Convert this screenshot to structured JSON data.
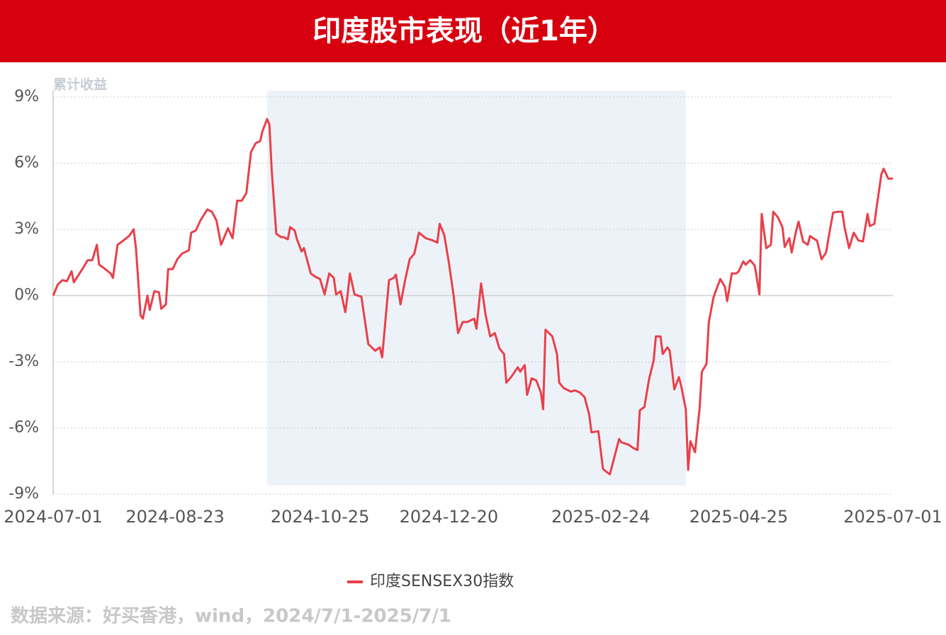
{
  "chart_data": {
    "type": "line",
    "title": "印度股市表现（近1年）",
    "y_label": "累计收益",
    "x": [
      "2024-07-01",
      "2024-07-03",
      "2024-07-05",
      "2024-07-07",
      "2024-07-09",
      "2024-07-10",
      "2024-07-14",
      "2024-07-16",
      "2024-07-18",
      "2024-07-20",
      "2024-07-21",
      "2024-07-23",
      "2024-07-26",
      "2024-07-27",
      "2024-07-29",
      "2024-07-31",
      "2024-08-03",
      "2024-08-05",
      "2024-08-06",
      "2024-08-08",
      "2024-08-09",
      "2024-08-11",
      "2024-08-12",
      "2024-08-14",
      "2024-08-16",
      "2024-08-17",
      "2024-08-19",
      "2024-08-20",
      "2024-08-22",
      "2024-08-24",
      "2024-08-26",
      "2024-08-29",
      "2024-08-30",
      "2024-09-01",
      "2024-09-03",
      "2024-09-06",
      "2024-09-08",
      "2024-09-10",
      "2024-09-12",
      "2024-09-15",
      "2024-09-17",
      "2024-09-19",
      "2024-09-21",
      "2024-09-23",
      "2024-09-25",
      "2024-09-27",
      "2024-09-29",
      "2024-09-30",
      "2024-10-02",
      "2024-10-03",
      "2024-10-04",
      "2024-10-06",
      "2024-10-08",
      "2024-10-09",
      "2024-10-11",
      "2024-10-12",
      "2024-10-14",
      "2024-10-15",
      "2024-10-17",
      "2024-10-18",
      "2024-10-21",
      "2024-10-23",
      "2024-10-25",
      "2024-10-27",
      "2024-10-29",
      "2024-10-31",
      "2024-11-01",
      "2024-11-03",
      "2024-11-05",
      "2024-11-06",
      "2024-11-07",
      "2024-11-09",
      "2024-11-12",
      "2024-11-15",
      "2024-11-18",
      "2024-11-20",
      "2024-11-21",
      "2024-11-24",
      "2024-11-26",
      "2024-11-27",
      "2024-11-29",
      "2024-12-01",
      "2024-12-03",
      "2024-12-05",
      "2024-12-07",
      "2024-12-10",
      "2024-12-13",
      "2024-12-15",
      "2024-12-16",
      "2024-12-18",
      "2024-12-20",
      "2024-12-22",
      "2024-12-24",
      "2024-12-26",
      "2024-12-28",
      "2024-12-31",
      "2025-01-01",
      "2025-01-03",
      "2025-01-05",
      "2025-01-07",
      "2025-01-09",
      "2025-01-11",
      "2025-01-13",
      "2025-01-14",
      "2025-01-16",
      "2025-01-19",
      "2025-01-20",
      "2025-01-22",
      "2025-01-23",
      "2025-01-25",
      "2025-01-27",
      "2025-01-29",
      "2025-01-30",
      "2025-01-31",
      "2025-02-03",
      "2025-02-05",
      "2025-02-06",
      "2025-02-08",
      "2025-02-11",
      "2025-02-13",
      "2025-02-15",
      "2025-02-17",
      "2025-02-19",
      "2025-02-20",
      "2025-02-23",
      "2025-02-25",
      "2025-02-26",
      "2025-02-28",
      "2025-03-02",
      "2025-03-04",
      "2025-03-05",
      "2025-03-08",
      "2025-03-10",
      "2025-03-12",
      "2025-03-13",
      "2025-03-15",
      "2025-03-17",
      "2025-03-19",
      "2025-03-20",
      "2025-03-22",
      "2025-03-23",
      "2025-03-25",
      "2025-03-26",
      "2025-03-28",
      "2025-03-30",
      "2025-03-31",
      "2025-04-02",
      "2025-04-03",
      "2025-04-04",
      "2025-04-06",
      "2025-04-08",
      "2025-04-09",
      "2025-04-11",
      "2025-04-12",
      "2025-04-14",
      "2025-04-15",
      "2025-04-17",
      "2025-04-19",
      "2025-04-20",
      "2025-04-22",
      "2025-04-24",
      "2025-04-25",
      "2025-04-27",
      "2025-04-28",
      "2025-04-30",
      "2025-05-02",
      "2025-05-04",
      "2025-05-05",
      "2025-05-07",
      "2025-05-09",
      "2025-05-10",
      "2025-05-12",
      "2025-05-14",
      "2025-05-15",
      "2025-05-17",
      "2025-05-18",
      "2025-05-20",
      "2025-05-21",
      "2025-05-23",
      "2025-05-25",
      "2025-05-26",
      "2025-05-28",
      "2025-05-29",
      "2025-05-31",
      "2025-06-02",
      "2025-06-03",
      "2025-06-05",
      "2025-06-07",
      "2025-06-09",
      "2025-06-10",
      "2025-06-12",
      "2025-06-14",
      "2025-06-16",
      "2025-06-18",
      "2025-06-20",
      "2025-06-21",
      "2025-06-23",
      "2025-06-24",
      "2025-06-26",
      "2025-06-27",
      "2025-06-29",
      "2025-07-01"
    ],
    "series": [
      {
        "name": "印度SENSEX30指数",
        "color": "#e8404a",
        "values": [
          0,
          0.5,
          0.7,
          0.65,
          1.1,
          0.6,
          1.25,
          1.6,
          1.6,
          2.3,
          1.4,
          1.25,
          1.0,
          0.8,
          2.3,
          2.45,
          2.7,
          3.0,
          2.15,
          -0.9,
          -1.05,
          0,
          -0.65,
          0.2,
          0.15,
          -0.6,
          -0.4,
          1.2,
          1.2,
          1.65,
          1.9,
          2.05,
          2.85,
          2.95,
          3.4,
          3.9,
          3.8,
          3.4,
          2.3,
          3.05,
          2.6,
          4.3,
          4.3,
          4.65,
          6.5,
          6.9,
          7.0,
          7.45,
          8.0,
          7.75,
          5.7,
          2.8,
          2.65,
          2.65,
          2.55,
          3.1,
          2.95,
          2.55,
          2.0,
          2.15,
          1.0,
          0.85,
          0.75,
          0.05,
          1.0,
          0.8,
          0.05,
          0.2,
          -0.75,
          0.05,
          1.0,
          0.05,
          -0.05,
          -2.2,
          -2.5,
          -2.35,
          -2.8,
          0.7,
          0.8,
          0.95,
          -0.4,
          0.7,
          1.65,
          1.9,
          2.85,
          2.6,
          2.5,
          2.4,
          3.25,
          2.75,
          1.5,
          0.05,
          -1.7,
          -1.2,
          -1.2,
          -1.05,
          -1.5,
          0.55,
          -0.9,
          -1.85,
          -1.7,
          -2.4,
          -2.65,
          -3.95,
          -3.7,
          -3.25,
          -3.45,
          -3.15,
          -4.5,
          -3.75,
          -3.85,
          -4.4,
          -5.15,
          -1.55,
          -1.85,
          -2.65,
          -3.95,
          -4.2,
          -4.35,
          -4.3,
          -4.4,
          -4.6,
          -5.4,
          -6.2,
          -6.15,
          -7.85,
          -7.95,
          -8.1,
          -7.3,
          -6.5,
          -6.65,
          -6.75,
          -6.9,
          -7.0,
          -5.2,
          -5.05,
          -3.8,
          -2.95,
          -1.85,
          -1.85,
          -2.65,
          -2.35,
          -2.5,
          -4.25,
          -3.7,
          -4.1,
          -5.15,
          -7.9,
          -6.6,
          -7.1,
          -5.1,
          -3.45,
          -3.1,
          -1.2,
          -0.1,
          0.2,
          0.75,
          0.4,
          -0.25,
          1.0,
          1.0,
          1.1,
          1.55,
          1.4,
          1.6,
          1.35,
          0.05,
          3.7,
          2.15,
          2.3,
          3.8,
          3.55,
          3.1,
          2.2,
          2.6,
          1.95,
          2.95,
          3.35,
          2.45,
          2.3,
          2.7,
          2.55,
          2.5,
          1.65,
          1.95,
          2.6,
          3.75,
          3.8,
          3.8,
          3.1,
          2.15,
          2.85,
          2.5,
          2.45,
          3.7,
          3.15,
          3.25,
          4.05,
          5.5,
          5.75,
          5.3,
          5.3
        ]
      }
    ],
    "xlim": [
      "2024-07-01",
      "2025-07-01"
    ],
    "xticks": [
      "2024-07-01",
      "2024-08-23",
      "2024-10-25",
      "2024-12-20",
      "2025-02-24",
      "2025-04-25",
      "2025-07-01"
    ],
    "ylim": [
      -9,
      9
    ],
    "yticks": [
      {
        "value": -9,
        "label": "-9%"
      },
      {
        "value": -6,
        "label": "-6%"
      },
      {
        "value": -3,
        "label": "-3%"
      },
      {
        "value": 0,
        "label": "0%"
      },
      {
        "value": 3,
        "label": "3%"
      },
      {
        "value": 6,
        "label": "6%"
      },
      {
        "value": 9,
        "label": "9%"
      }
    ],
    "grid": true,
    "legend": "bottom",
    "highlight": {
      "from": "2024-10-02",
      "to": "2025-04-02"
    }
  },
  "footer": {
    "source": "数据来源：好买香港，wind，2024/7/1-2025/7/1"
  }
}
